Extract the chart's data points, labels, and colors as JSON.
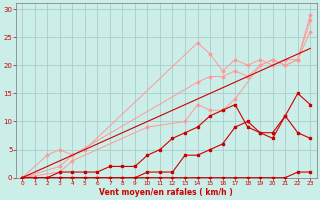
{
  "background_color": "#cceee8",
  "grid_color": "#aacccc",
  "line_color_light": "#ff9999",
  "line_color_dark": "#cc0000",
  "xlabel": "Vent moyen/en rafales ( km/h )",
  "xlabel_color": "#cc0000",
  "tick_color": "#cc0000",
  "xlim": [
    -0.5,
    23.5
  ],
  "ylim": [
    0,
    31
  ],
  "yticks": [
    0,
    5,
    10,
    15,
    20,
    25,
    30
  ],
  "xticks": [
    0,
    1,
    2,
    3,
    4,
    5,
    6,
    7,
    8,
    9,
    10,
    11,
    12,
    13,
    14,
    15,
    16,
    17,
    18,
    19,
    20,
    21,
    22,
    23
  ],
  "series_light": [
    {
      "x": [
        0,
        2,
        3,
        4,
        5,
        14,
        15,
        16,
        17,
        18,
        19,
        20,
        21,
        22,
        23
      ],
      "y": [
        0,
        4,
        5,
        4,
        5,
        24,
        22,
        19,
        21,
        20,
        21,
        20,
        21,
        21,
        28
      ]
    },
    {
      "x": [
        0,
        3,
        4,
        14,
        15,
        16,
        17,
        18,
        19,
        20,
        21,
        22,
        23
      ],
      "y": [
        0,
        2,
        4,
        17,
        18,
        18,
        19,
        18,
        20,
        21,
        20,
        21,
        29
      ]
    },
    {
      "x": [
        0,
        3,
        4,
        10,
        13,
        14,
        15,
        16,
        17,
        19,
        20,
        21,
        22,
        23
      ],
      "y": [
        0,
        1,
        3,
        9,
        10,
        13,
        12,
        12,
        14,
        20,
        21,
        20,
        21,
        26
      ]
    }
  ],
  "series_dark": [
    {
      "x": [
        0,
        1,
        2,
        3,
        4,
        5,
        6,
        7,
        8,
        9,
        10,
        11,
        12,
        13,
        14,
        15,
        16,
        17,
        18,
        19,
        20,
        21,
        22,
        23
      ],
      "y": [
        0,
        0,
        0,
        1,
        1,
        1,
        1,
        2,
        2,
        2,
        4,
        5,
        7,
        8,
        9,
        11,
        12,
        13,
        9,
        8,
        8,
        11,
        15,
        13
      ]
    },
    {
      "x": [
        0,
        1,
        2,
        3,
        4,
        5,
        6,
        7,
        8,
        9,
        10,
        11,
        12,
        13,
        14,
        15,
        16,
        17,
        18,
        19,
        20,
        21,
        22,
        23
      ],
      "y": [
        0,
        0,
        0,
        0,
        0,
        0,
        0,
        0,
        0,
        0,
        0,
        0,
        0,
        0,
        0,
        0,
        0,
        0,
        0,
        0,
        0,
        0,
        1,
        1
      ]
    },
    {
      "x": [
        0,
        1,
        2,
        3,
        4,
        5,
        6,
        7,
        8,
        9,
        10,
        11,
        12,
        13,
        14,
        15,
        16,
        17,
        18,
        19,
        20,
        21,
        22,
        23
      ],
      "y": [
        0,
        0,
        0,
        0,
        0,
        0,
        0,
        0,
        0,
        0,
        1,
        1,
        1,
        4,
        4,
        5,
        6,
        9,
        10,
        8,
        7,
        11,
        8,
        7
      ]
    }
  ],
  "series_diagonal": [
    {
      "x": [
        0,
        23
      ],
      "y": [
        0,
        23
      ]
    }
  ]
}
